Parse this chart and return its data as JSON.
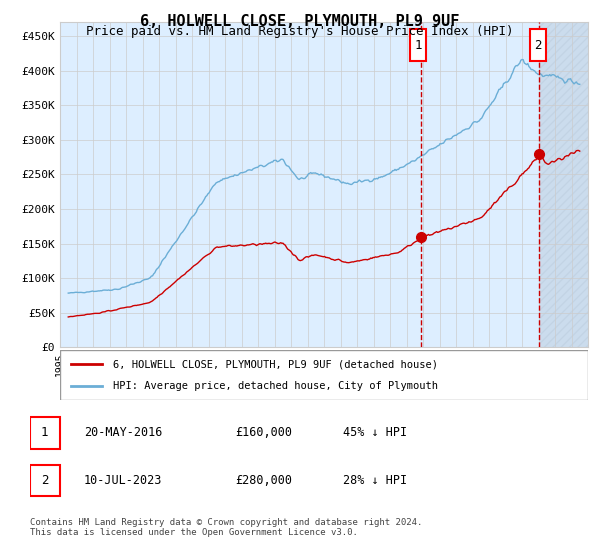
{
  "title": "6, HOLWELL CLOSE, PLYMOUTH, PL9 9UF",
  "subtitle": "Price paid vs. HM Land Registry's House Price Index (HPI)",
  "hpi_label": "HPI: Average price, detached house, City of Plymouth",
  "price_label": "6, HOLWELL CLOSE, PLYMOUTH, PL9 9UF (detached house)",
  "footnote": "Contains HM Land Registry data © Crown copyright and database right 2024.\nThis data is licensed under the Open Government Licence v3.0.",
  "sale1_date": "20-MAY-2016",
  "sale1_price": "£160,000",
  "sale1_hpi": "45% ↓ HPI",
  "sale2_date": "10-JUL-2023",
  "sale2_price": "£280,000",
  "sale2_hpi": "28% ↓ HPI",
  "sale1_year": 2016.38,
  "sale1_value": 160000,
  "sale2_year": 2023.52,
  "sale2_value": 280000,
  "hpi_color": "#6baed6",
  "price_color": "#cc0000",
  "bg_color": "#ddeeff",
  "hatch_color": "#bbccdd",
  "grid_color": "#cccccc",
  "ylim": [
    0,
    470000
  ],
  "xlim_start": 1995.0,
  "xlim_end": 2026.5,
  "yticks": [
    0,
    50000,
    100000,
    150000,
    200000,
    250000,
    300000,
    350000,
    400000,
    450000
  ],
  "ytick_labels": [
    "£0",
    "£50K",
    "£100K",
    "£150K",
    "£200K",
    "£250K",
    "£300K",
    "£350K",
    "£400K",
    "£450K"
  ]
}
